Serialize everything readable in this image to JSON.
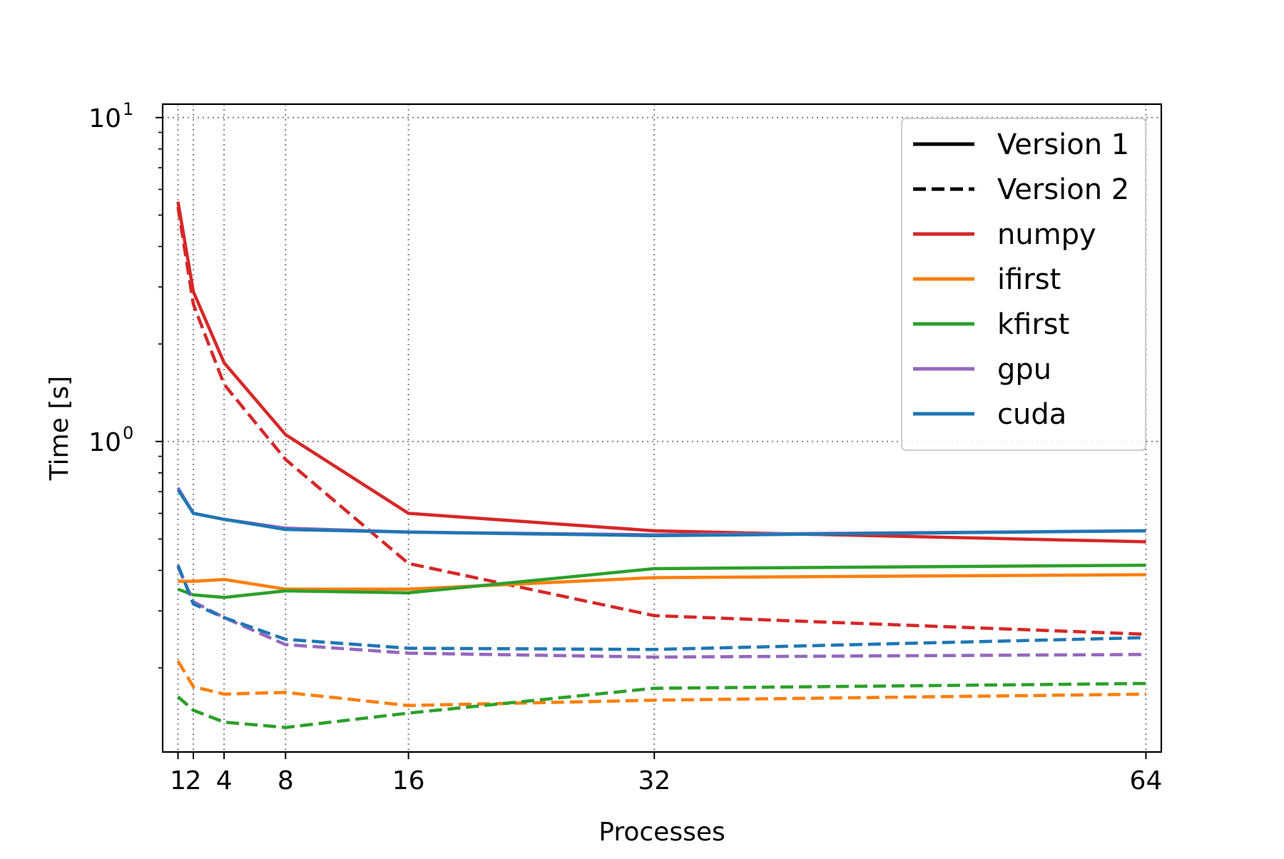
{
  "chart_data": {
    "type": "line",
    "title": "",
    "xlabel": "Processes",
    "ylabel": "Time [s]",
    "y_scale": "log",
    "xlim": [
      0,
      65
    ],
    "ylim": [
      0.11,
      11
    ],
    "x_ticks": [
      {
        "value": 1,
        "label": "1"
      },
      {
        "value": 2,
        "label": "2"
      },
      {
        "value": 4,
        "label": "4"
      },
      {
        "value": 8,
        "label": "8"
      },
      {
        "value": 16,
        "label": "16"
      },
      {
        "value": 32,
        "label": "32"
      },
      {
        "value": 64,
        "label": "64"
      }
    ],
    "y_ticks": [
      {
        "value": 1,
        "base": "10",
        "exponent": "0"
      },
      {
        "value": 10,
        "base": "10",
        "exponent": "1"
      }
    ],
    "grid": "dotted",
    "legend_position": "upper right",
    "x": [
      1,
      2,
      4,
      8,
      16,
      32,
      64
    ],
    "styles": [
      {
        "name": "Version 1",
        "dash": "solid"
      },
      {
        "name": "Version 2",
        "dash": "dashed"
      }
    ],
    "colors": [
      {
        "name": "numpy",
        "color": "#d62728"
      },
      {
        "name": "ifirst",
        "color": "#ff7f0e"
      },
      {
        "name": "kfirst",
        "color": "#2ca02c"
      },
      {
        "name": "gpu",
        "color": "#9467bd"
      },
      {
        "name": "cuda",
        "color": "#1f77b4"
      }
    ],
    "series": [
      {
        "implementation": "numpy",
        "version": "Version 1",
        "values": [
          5.5,
          2.9,
          1.75,
          1.05,
          0.6,
          0.53,
          0.49
        ]
      },
      {
        "implementation": "numpy",
        "version": "Version 2",
        "values": [
          5.3,
          2.65,
          1.5,
          0.88,
          0.42,
          0.29,
          0.254
        ]
      },
      {
        "implementation": "ifirst",
        "version": "Version 1",
        "values": [
          0.37,
          0.37,
          0.375,
          0.35,
          0.35,
          0.38,
          0.388
        ]
      },
      {
        "implementation": "ifirst",
        "version": "Version 2",
        "values": [
          0.21,
          0.175,
          0.166,
          0.168,
          0.153,
          0.159,
          0.166
        ]
      },
      {
        "implementation": "kfirst",
        "version": "Version 1",
        "values": [
          0.35,
          0.336,
          0.33,
          0.346,
          0.341,
          0.405,
          0.415
        ]
      },
      {
        "implementation": "kfirst",
        "version": "Version 2",
        "values": [
          0.163,
          0.148,
          0.136,
          0.131,
          0.145,
          0.173,
          0.179
        ]
      },
      {
        "implementation": "gpu",
        "version": "Version 1",
        "values": [
          0.72,
          0.6,
          0.575,
          0.54,
          0.525,
          0.515,
          0.53
        ]
      },
      {
        "implementation": "gpu",
        "version": "Version 2",
        "values": [
          0.41,
          0.32,
          0.286,
          0.236,
          0.222,
          0.216,
          0.22
        ]
      },
      {
        "implementation": "cuda",
        "version": "Version 1",
        "values": [
          0.71,
          0.6,
          0.575,
          0.535,
          0.525,
          0.512,
          0.53
        ]
      },
      {
        "implementation": "cuda",
        "version": "Version 2",
        "values": [
          0.415,
          0.315,
          0.286,
          0.245,
          0.23,
          0.228,
          0.248
        ]
      }
    ]
  }
}
